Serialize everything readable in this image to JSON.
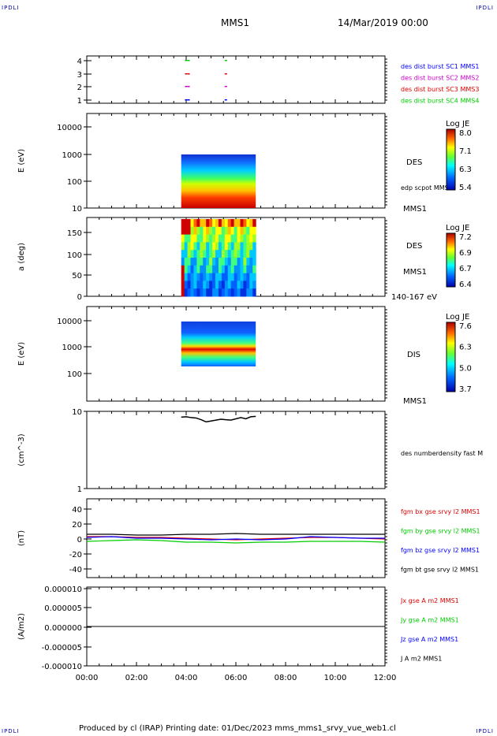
{
  "header": {
    "corner_tl": "IPDLI",
    "corner_tr": "IPDLI",
    "corner_bl": "IPDLI",
    "corner_br": "IPDLI",
    "mission": "MMS1",
    "date": "14/Mar/2019 00:00"
  },
  "footer": {
    "text": "Produced by cl (IRAP)   Printing date: 01/Dec/2023   mms_mms1_srvy_vue_web1.cl"
  },
  "colors": {
    "blue": "#0000ff",
    "magenta": "#cc00cc",
    "red": "#dd0000",
    "green": "#00cc00",
    "black": "#000000"
  },
  "chart_data": [
    {
      "type": "scatter",
      "panel": "burst",
      "yticks": [
        "4",
        "3",
        "2",
        "1"
      ],
      "legend": [
        {
          "label": "des dist burst SC1 MMS1",
          "color": "#0000ff"
        },
        {
          "label": "des dist burst SC2 MMS2",
          "color": "#cc00cc"
        },
        {
          "label": "des dist burst SC3 MMS3",
          "color": "#dd0000"
        },
        {
          "label": "des dist burst SC4 MMS4",
          "color": "#00cc00"
        }
      ],
      "series": [
        {
          "values": [
            [
              3.95,
              1
            ],
            [
              4.05,
              1
            ],
            [
              5.55,
              1
            ]
          ]
        },
        {
          "values": [
            [
              3.95,
              2
            ],
            [
              4.05,
              2
            ],
            [
              5.55,
              2
            ]
          ]
        },
        {
          "values": [
            [
              3.95,
              3
            ],
            [
              4.05,
              3
            ],
            [
              5.55,
              3
            ]
          ]
        },
        {
          "values": [
            [
              3.95,
              4
            ],
            [
              4.05,
              4
            ],
            [
              5.55,
              4
            ]
          ]
        }
      ]
    },
    {
      "type": "heatmap",
      "panel": "des-energy",
      "ylabel": "E (eV)",
      "yticks": [
        "10000",
        "1000",
        "100",
        "10"
      ],
      "instrument": "DES",
      "extra": "edp scpot MMS1",
      "sc": "MMS1",
      "cbar_title": "Log JE",
      "cbar_ticks": [
        "8.0",
        "7.1",
        "6.3",
        "5.4"
      ],
      "x_range": [
        3.8,
        6.8
      ]
    },
    {
      "type": "heatmap",
      "panel": "des-pitch",
      "ylabel": "a (deg)",
      "yticks": [
        "150",
        "100",
        "50",
        "0"
      ],
      "instrument": "DES",
      "sc": "MMS1",
      "extra": "140-167 eV",
      "cbar_title": "Log JE",
      "cbar_ticks": [
        "7.2",
        "6.9",
        "6.7",
        "6.4"
      ],
      "x_range": [
        3.8,
        6.8
      ]
    },
    {
      "type": "heatmap",
      "panel": "dis-energy",
      "ylabel": "E (eV)",
      "yticks": [
        "10000",
        "1000",
        "100"
      ],
      "instrument": "DIS",
      "sc": "MMS1",
      "cbar_title": "Log JE",
      "cbar_ticks": [
        "7.6",
        "6.3",
        "5.0",
        "3.7"
      ],
      "x_range": [
        3.8,
        6.8
      ]
    },
    {
      "type": "line",
      "panel": "density",
      "ylabel": "(cm^-3)",
      "yticks": [
        "10",
        "1"
      ],
      "legend": [
        {
          "label": "des numberdensity fast M",
          "color": "#000000"
        }
      ],
      "ylim": [
        1,
        10
      ],
      "series": [
        {
          "x": [
            3.8,
            4.0,
            4.2,
            4.4,
            4.6,
            4.8,
            5.0,
            5.2,
            5.4,
            5.6,
            5.8,
            6.0,
            6.2,
            6.4,
            6.6,
            6.8
          ],
          "y": [
            8.4,
            8.5,
            8.3,
            8.2,
            7.8,
            7.3,
            7.5,
            7.7,
            7.9,
            7.8,
            7.7,
            8.0,
            8.3,
            8.0,
            8.5,
            8.6
          ]
        }
      ]
    },
    {
      "type": "line",
      "panel": "fgm",
      "ylabel": "(nT)",
      "yticks": [
        "40",
        "20",
        "0",
        "-20",
        "-40"
      ],
      "ylim": [
        -50,
        50
      ],
      "legend": [
        {
          "label": "fgm bx gse srvy l2 MMS1",
          "color": "#dd0000"
        },
        {
          "label": "fgm by gse srvy l2 MMS1",
          "color": "#00cc00"
        },
        {
          "label": "fgm bz gse srvy l2 MMS1",
          "color": "#0000ff"
        },
        {
          "label": "fgm bt gse srvy l2 MMS1",
          "color": "#000000"
        }
      ],
      "x": [
        0,
        1,
        2,
        3,
        4,
        5,
        6,
        7,
        8,
        9,
        10,
        11,
        12
      ],
      "series": [
        {
          "values": [
            2,
            2,
            1,
            1,
            0,
            -1,
            -2,
            -1,
            0,
            1,
            1,
            0,
            -1
          ]
        },
        {
          "values": [
            -4,
            -3,
            -2,
            -3,
            -5,
            -5,
            -6,
            -5,
            -5,
            -4,
            -4,
            -4,
            -5
          ]
        },
        {
          "values": [
            1,
            2,
            0,
            0,
            -1,
            -2,
            -1,
            -2,
            -1,
            2,
            1,
            0,
            0
          ]
        },
        {
          "values": [
            5,
            5,
            4,
            4,
            5,
            5,
            6,
            5,
            5,
            5,
            5,
            5,
            5
          ]
        }
      ]
    },
    {
      "type": "line",
      "panel": "current",
      "ylabel": "(A/m2)",
      "yticks": [
        "0.000010",
        "0.000005",
        "0.000000",
        "-0.000005",
        "-0.000010"
      ],
      "ylim": [
        -1e-05,
        1e-05
      ],
      "legend": [
        {
          "label": "Jx gse A m2 MMS1",
          "color": "#dd0000"
        },
        {
          "label": "Jy gse A m2 MMS1",
          "color": "#00cc00"
        },
        {
          "label": "Jz gse A m2 MMS1",
          "color": "#0000ff"
        },
        {
          "label": "J A m2 MMS1",
          "color": "#000000"
        }
      ],
      "x": [
        0,
        1,
        2,
        3,
        4,
        5,
        6,
        7,
        8,
        9,
        10,
        11,
        12
      ],
      "series": [
        {
          "values": [
            0,
            0,
            0,
            0,
            0,
            0,
            0,
            0,
            0,
            0,
            0,
            0,
            0
          ]
        }
      ]
    }
  ],
  "xaxis": {
    "ticks": [
      "00:00",
      "02:00",
      "04:00",
      "06:00",
      "08:00",
      "10:00",
      "12:00"
    ],
    "range": [
      0,
      12
    ]
  }
}
